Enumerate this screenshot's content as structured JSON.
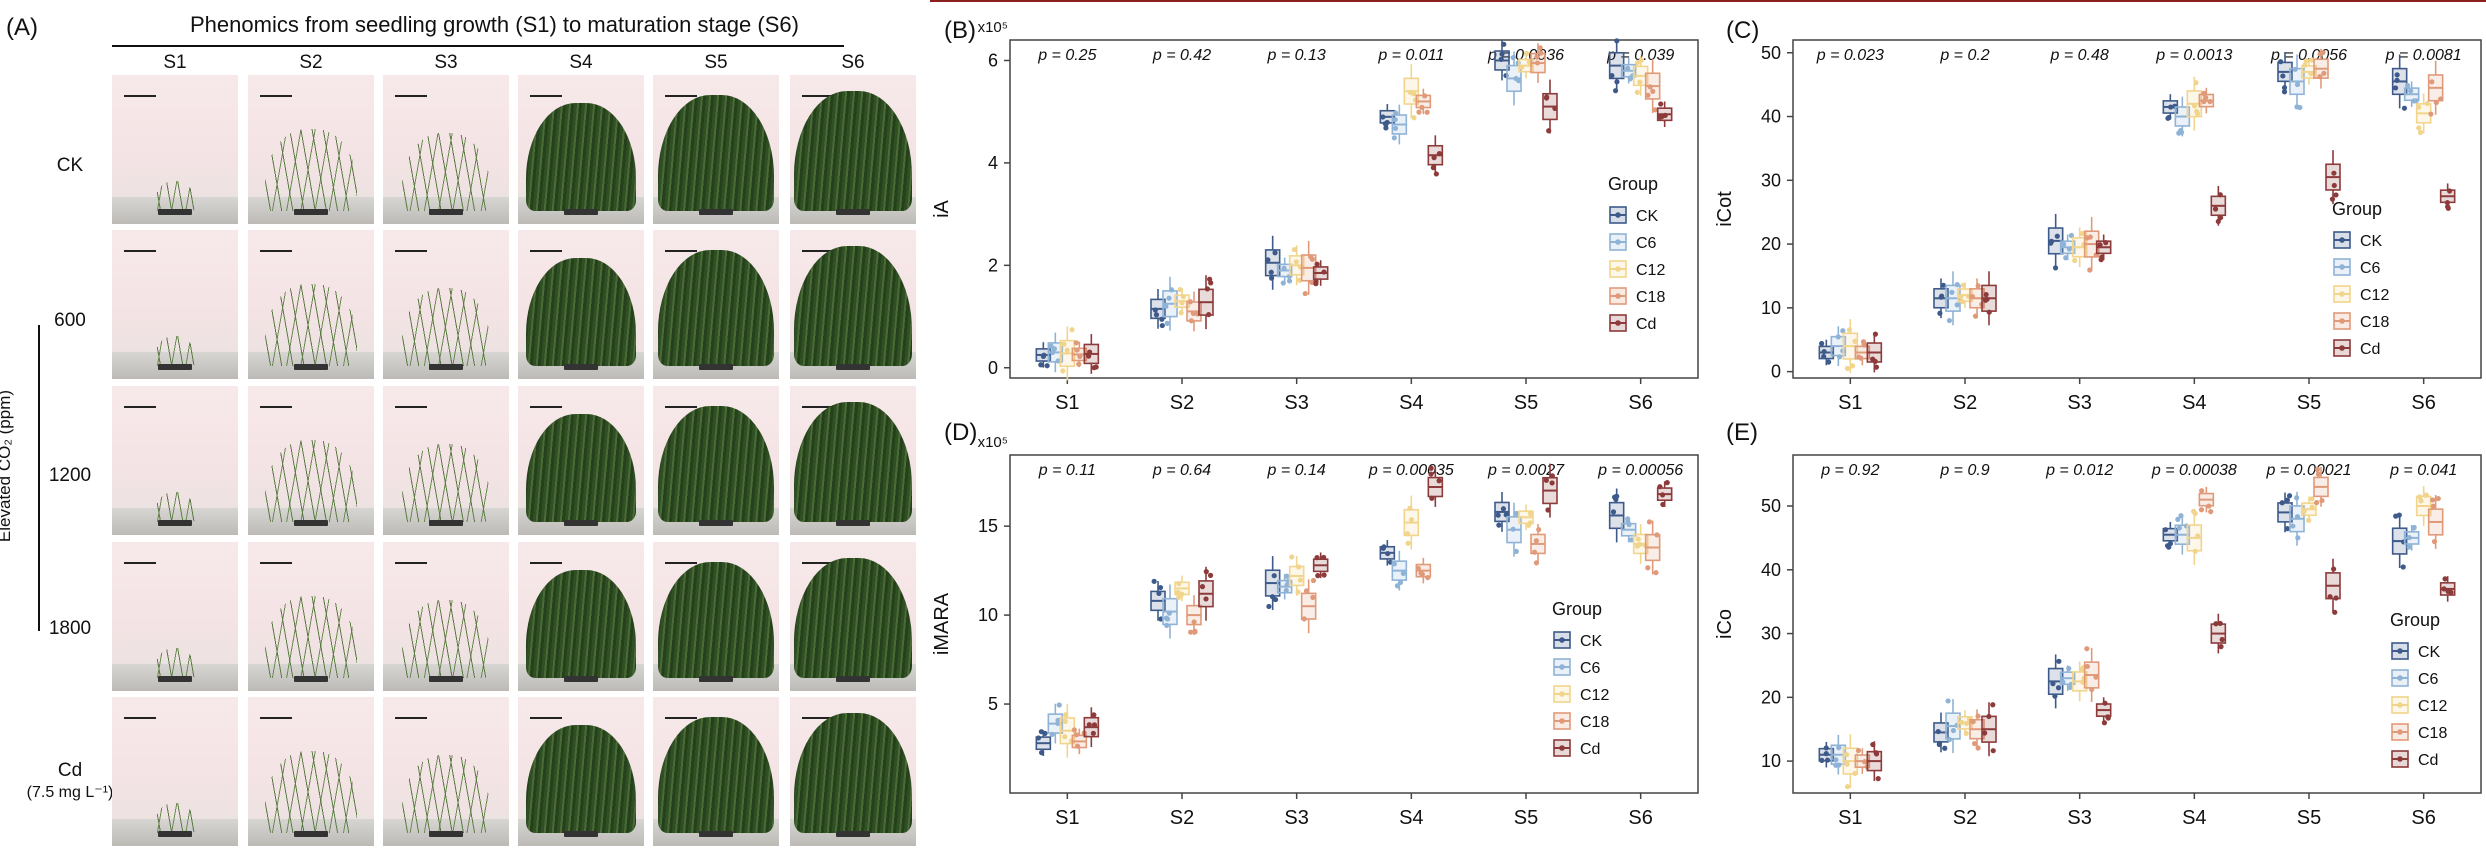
{
  "panel_a": {
    "label": "(A)",
    "title": "Phenomics from seedling growth (S1) to maturation stage (S6)",
    "stages": [
      "S1",
      "S2",
      "S3",
      "S4",
      "S5",
      "S6"
    ],
    "rows": [
      "CK",
      "600",
      "1200",
      "1800",
      "Cd"
    ],
    "cd_sub": "(7.5 mg L⁻¹)",
    "elevated_label": "Elevated CO₂ (ppm)",
    "plant_color": "#2f4f24"
  },
  "groups": [
    "CK",
    "C6",
    "C12",
    "C18",
    "Cd"
  ],
  "group_colors": [
    "#3d5a8a",
    "#8fb3d6",
    "#f2d58c",
    "#e09a7a",
    "#8c3a3a"
  ],
  "legend_title": "Group",
  "chart_data": [
    {
      "id": "B",
      "label": "(B)",
      "type": "box",
      "ylabel": "iA",
      "multiplier": "x10⁵",
      "categories": [
        "S1",
        "S2",
        "S3",
        "S4",
        "S5",
        "S6"
      ],
      "pvalues": [
        "p = 0.25",
        "p = 0.42",
        "p = 0.13",
        "p = 0.011",
        "p = 0.0036",
        "p = 0.039"
      ],
      "ylim": [
        -0.2,
        6.4
      ],
      "yticks": [
        0,
        2,
        4,
        6
      ],
      "medians": [
        [
          0.25,
          0.3,
          0.28,
          0.26,
          0.27
        ],
        [
          1.15,
          1.25,
          1.3,
          1.1,
          1.28
        ],
        [
          2.05,
          1.9,
          2.0,
          1.95,
          1.85
        ],
        [
          4.9,
          4.75,
          5.4,
          5.2,
          4.15
        ],
        [
          6.0,
          5.65,
          5.9,
          5.95,
          5.1
        ],
        [
          5.9,
          5.8,
          5.7,
          5.5,
          4.95
        ]
      ]
    },
    {
      "id": "C",
      "label": "(C)",
      "type": "box",
      "ylabel": "iCot",
      "multiplier": "",
      "categories": [
        "S1",
        "S2",
        "S3",
        "S4",
        "S5",
        "S6"
      ],
      "pvalues": [
        "p = 0.023",
        "p = 0.2",
        "p = 0.48",
        "p = 0.0013",
        "p = 0.0056",
        "p = 0.0081"
      ],
      "ylim": [
        -1,
        52
      ],
      "yticks": [
        0,
        10,
        20,
        30,
        40,
        50
      ],
      "medians": [
        [
          3,
          4,
          4,
          3,
          3
        ],
        [
          11.5,
          11.5,
          12,
          11.5,
          11.5
        ],
        [
          20.5,
          19.5,
          19.5,
          20,
          19.5
        ],
        [
          41.5,
          40,
          42,
          42.5,
          26
        ],
        [
          47,
          45.5,
          47,
          47.5,
          30.5
        ],
        [
          45.5,
          43.5,
          40.5,
          44.5,
          27.5
        ]
      ]
    },
    {
      "id": "D",
      "label": "(D)",
      "type": "box",
      "ylabel": "iMARA",
      "multiplier": "x10⁵",
      "categories": [
        "S1",
        "S2",
        "S3",
        "S4",
        "S5",
        "S6"
      ],
      "pvalues": [
        "p = 0.11",
        "p = 0.64",
        "p = 0.14",
        "p = 0.00035",
        "p = 0.0027",
        "p = 0.00056"
      ],
      "ylim": [
        0,
        19
      ],
      "yticks": [
        5,
        10,
        15
      ],
      "medians": [
        [
          2.8,
          3.9,
          3.5,
          2.9,
          3.7
        ],
        [
          10.8,
          10.2,
          11.5,
          10,
          11.2
        ],
        [
          11.8,
          11.6,
          12.2,
          10.5,
          12.8
        ],
        [
          13.5,
          12.5,
          15.2,
          12.5,
          17.2
        ],
        [
          15.8,
          14.8,
          15.5,
          14,
          17
        ],
        [
          15.6,
          14.8,
          14,
          13.8,
          16.8
        ]
      ]
    },
    {
      "id": "E",
      "label": "(E)",
      "type": "box",
      "ylabel": "iCo",
      "multiplier": "",
      "categories": [
        "S1",
        "S2",
        "S3",
        "S4",
        "S5",
        "S6"
      ],
      "pvalues": [
        "p = 0.92",
        "p = 0.9",
        "p = 0.012",
        "p = 0.00038",
        "p = 0.00021",
        "p = 0.041"
      ],
      "ylim": [
        5,
        58
      ],
      "yticks": [
        10,
        20,
        30,
        40,
        50
      ],
      "medians": [
        [
          11,
          11,
          10,
          10,
          10
        ],
        [
          14.5,
          15.5,
          16,
          15,
          15
        ],
        [
          22.5,
          23,
          22.5,
          23.5,
          18
        ],
        [
          45.5,
          45.5,
          45,
          51,
          30
        ],
        [
          49,
          48,
          49.5,
          53,
          37.5
        ],
        [
          44.5,
          45,
          50,
          47.5,
          37
        ]
      ]
    }
  ]
}
